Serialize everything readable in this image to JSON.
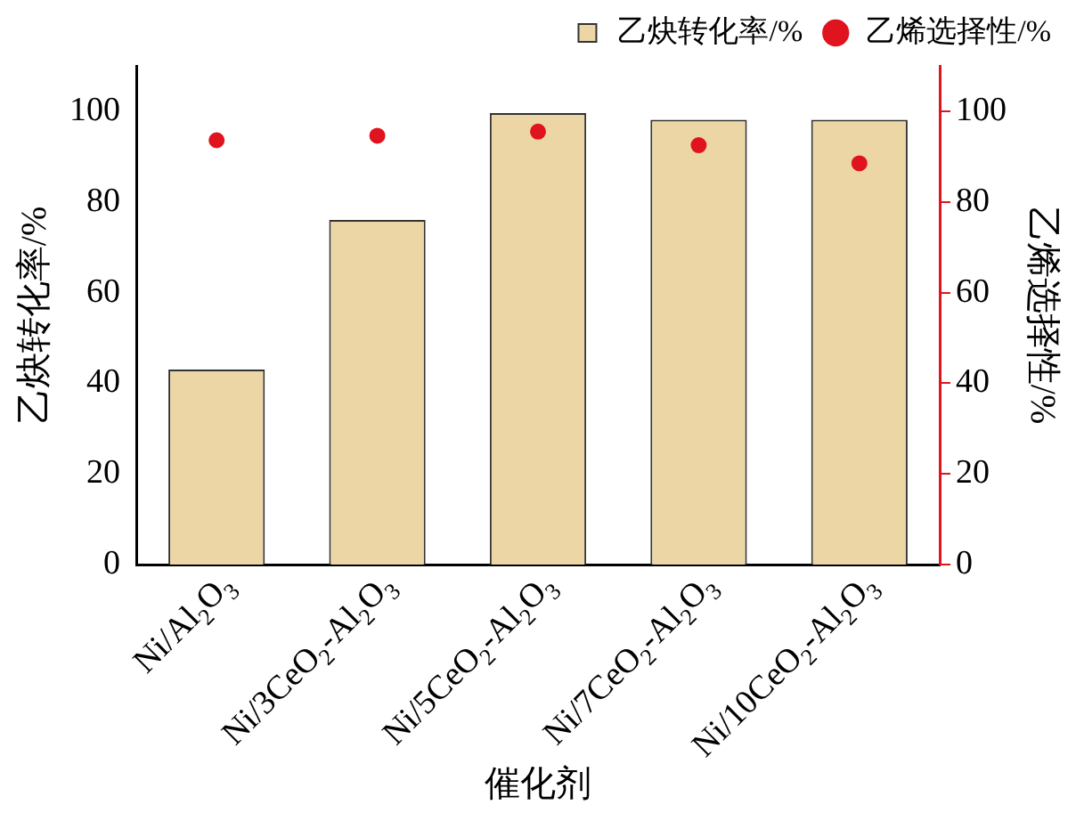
{
  "chart_data": {
    "type": "bar",
    "xlabel": "催化剂",
    "ylabel": "乙炔转化率/%",
    "y2label": "乙烯选择性/%",
    "categories": [
      "Ni/Al$_{2}$O$_{3}$",
      "Ni/3CeO$_{2}$-Al$_{2}$O$_{3}$",
      "Ni/5CeO$_{2}$-Al$_{2}$O$_{3}$",
      "Ni/7CeO$_{2}$-Al$_{2}$O$_{3}$",
      "Ni/10CeO$_{2}$-Al$_{2}$O$_{3}$"
    ],
    "series": [
      {
        "name": "乙炔转化率/%",
        "color": "#ecd6a5",
        "values": [
          43.0,
          76.0,
          99.6,
          98.1,
          98.1
        ]
      },
      {
        "name": "乙烯选择性/%",
        "type": "scatter",
        "axis": "y2",
        "color": "#e0141e",
        "values": [
          93.6,
          94.6,
          95.5,
          92.5,
          88.5
        ]
      }
    ],
    "ylim": [
      0,
      110
    ],
    "yticks": [
      0,
      20,
      40,
      60,
      80,
      100
    ],
    "y2lim": [
      0,
      110
    ],
    "y2ticks": [
      0,
      20,
      40,
      60,
      80,
      100
    ],
    "legend": "top",
    "grid": false,
    "marker": "circle"
  }
}
